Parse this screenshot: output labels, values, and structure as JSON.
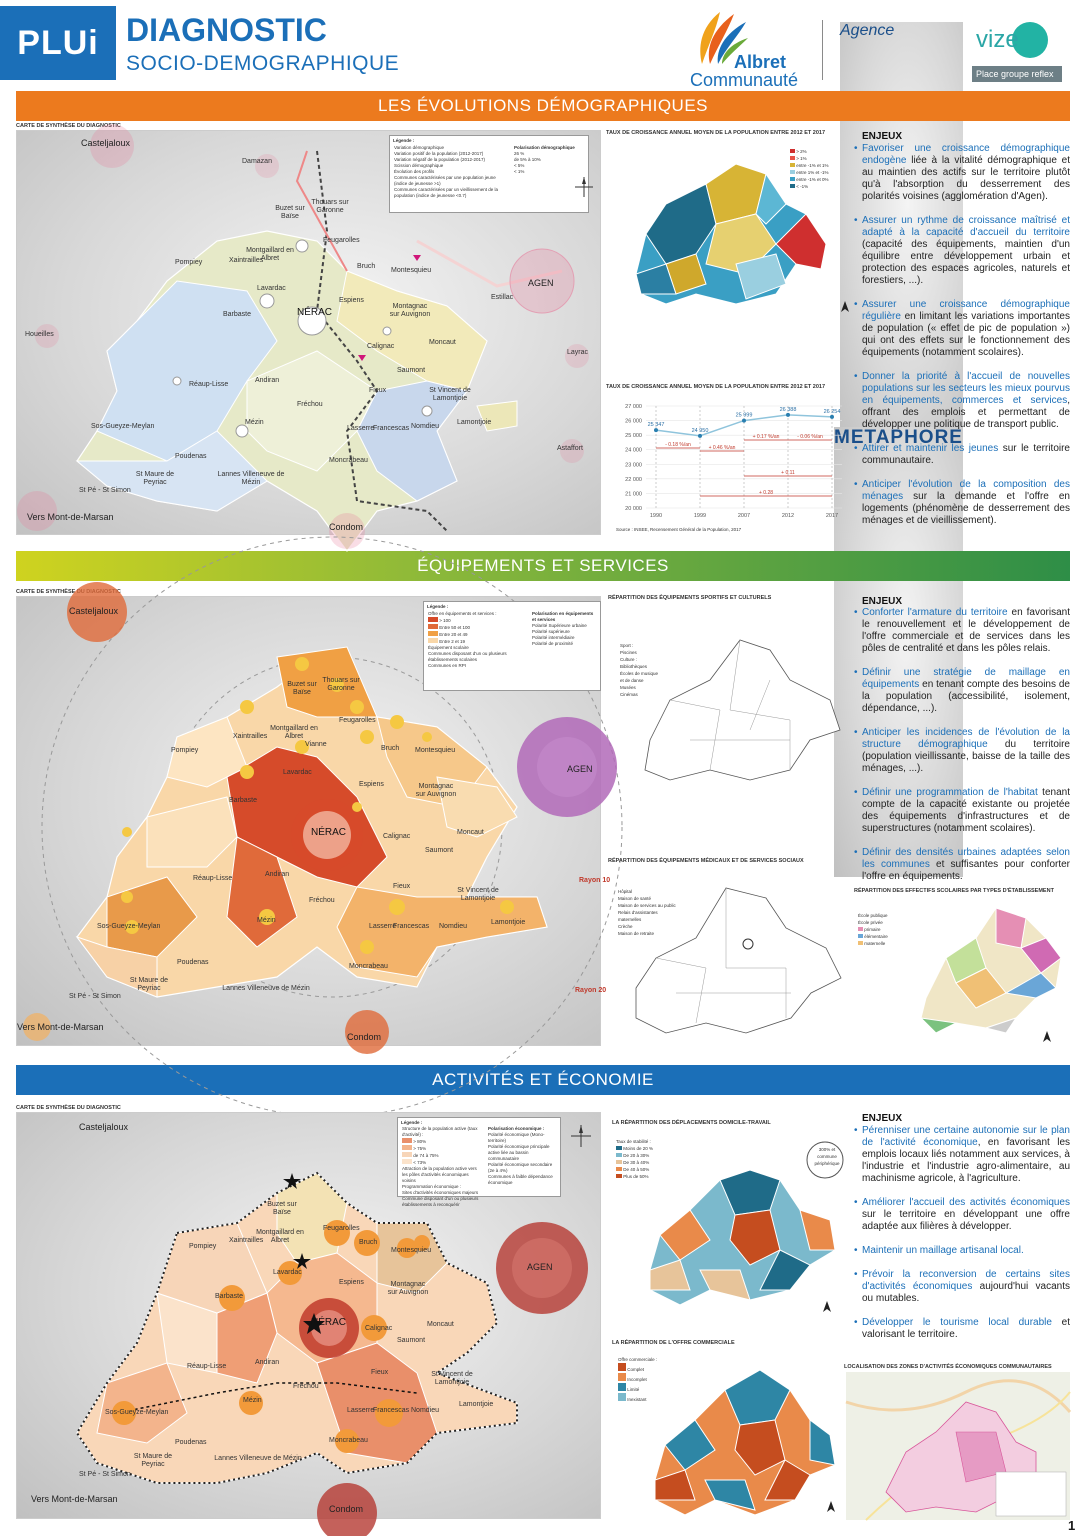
{
  "header": {
    "badge": "PLUi",
    "title": "DIAGNOSTIC",
    "subtitle": "SOCIO-DEMOGRAPHIQUE",
    "logo_albret_1": "Albret",
    "logo_albret_2": "Communauté",
    "logo_agence": "Agence",
    "logo_metaphore": "METAPHORE",
    "logo_vizea": "vize",
    "logo_place": "Place groupe reflex"
  },
  "sections": [
    {
      "title": "LES ÉVOLUTIONS DÉMOGRAPHIQUES"
    },
    {
      "title": "ÉQUIPEMENTS ET SERVICES"
    },
    {
      "title": "ACTIVITÉS ET ÉCONOMIE"
    }
  ],
  "map_caption": "CARTE DE SYNTHÈSE DU DIAGNOSTIC",
  "map1": {
    "labels": {
      "casteljaloux": "Casteljaloux",
      "damazan": "Damazan",
      "houeilles": "Houeilles",
      "agen": "AGEN",
      "nerac": "NÉRAC",
      "estillac": "Estillac",
      "layrac": "Layrac",
      "astaffort": "Astaffort",
      "condom": "Condom",
      "mdm": "Vers Mont-de-Marsan",
      "pompiey": "Pompiey",
      "xaintrailles": "Xaintrailles",
      "montgaillard": "Montgaillard en Albret",
      "buzet": "Buzet sur Baïse",
      "thouars": "Thouars sur Garonne",
      "feugarolles": "Feugarolles",
      "bruch": "Bruch",
      "montesquieu": "Montesquieu",
      "lavardac": "Lavardac",
      "barbaste": "Barbaste",
      "espiens": "Espiens",
      "montagnac": "Montagnac sur Auvignon",
      "calignac": "Calignac",
      "saumont": "Saumont",
      "moncaut": "Moncaut",
      "reaup": "Réaup-Lisse",
      "andiran": "Andiran",
      "frechou": "Fréchou",
      "mezin": "Mézin",
      "fieux": "Fieux",
      "stvincent": "St Vincent de Lamontjoie",
      "lasserre": "Lasserre",
      "francescas": "Francescas",
      "nomdieu": "Nomdieu",
      "lamontjoie": "Lamontjoie",
      "sosgueyze": "Sos-Gueyze-Meylan",
      "poudenas": "Poudenas",
      "stmaure": "St Maure de Peyriac",
      "lannes": "Lannes Villeneuve de Mézin",
      "moncrabeau": "Moncrabeau",
      "stpe": "St Pé - St Simon"
    },
    "legend": {
      "title": "Légende :",
      "items": [
        "Variation démographique",
        "Variation positif de la population (2012-2017)",
        "Variation négatif de la population (2012-2017)",
        "Scission démographique",
        "Évolution des profils",
        "Communes caractérisées par une population jeune (indice de jeunesse >1)",
        "Communes caractérisées par un vieillissement de la population (indice de jeunesse <0.7)"
      ],
      "polar_title": "Polarisation démographique",
      "polar_items": [
        "26 %",
        "de 5% à 10%",
        "< 5%",
        "< 1%"
      ]
    }
  },
  "map2": {
    "labels": {
      "rayon10": "Rayon 10",
      "rayon20": "Rayon 20"
    },
    "legend": {
      "title": "Légende :",
      "items": [
        "Offre en équipements et services :",
        "> 100",
        "Entre 50 et 100",
        "Entre 20 et 49",
        "Entre 2 et 19",
        "Équipement scolaire",
        "Communes disposant d'un ou plusieurs établissements scolaires",
        "Communes en RPI"
      ],
      "polar_title": "Polarisation en équipements et services",
      "polar_items": [
        "Polarité Supérieure urbaine",
        "Polarité supérieure",
        "Polarité intermédiaire",
        "Polarité de proximité"
      ]
    }
  },
  "map3": {
    "legend": {
      "title": "Légende :",
      "items": [
        "Structure de la population active (taux d'activité) :",
        "> 80%",
        "> 75%",
        "de 74 à 75%",
        "< 73%",
        "Attraction de la population active vers les pôles d'activités économiques voisins",
        "Programmation économique :",
        "Sites d'activités économiques majeurs",
        "Commune disposant d'un ou plusieurs établissements à reconquérir"
      ],
      "polar_title": "Polarisation économique :",
      "polar_items": [
        "Polarité économique (Mono-territoire)",
        "Polarité économique principale active liée au bassin communautaire",
        "Polarité économique secondaire (2e à 4%)",
        "Communes à faible dépendance économique"
      ]
    }
  },
  "right1": {
    "map_caption": "TAUX DE CROISSANCE ANNUEL MOYEN DE LA POPULATION ENTRE 2012 ET 2017",
    "map_legend": [
      "> 2%",
      "> 1%",
      "entre -1% et 1%",
      "entre 1% et -1%",
      "entre -1% et 0%",
      "< -1%"
    ],
    "chart_caption": "TAUX DE CROISSANCE ANNUEL MOYEN DE LA POPULATION ENTRE 2012 ET 2017",
    "chart_source": "Source : INSEE, Recensement Général de la Population, 2017"
  },
  "chart_data": {
    "type": "line",
    "x": [
      "1990",
      "1999",
      "2007",
      "2012",
      "2017"
    ],
    "series": [
      {
        "values": [
          25347,
          24950,
          25999,
          26388,
          26254
        ]
      }
    ],
    "ylim": [
      20000,
      27000
    ],
    "yticks": [
      "27 000",
      "26 000",
      "25 000",
      "24 000",
      "23 000",
      "22 000",
      "21 000",
      "20 000"
    ],
    "data_labels": [
      "25 347",
      "24 950",
      "25 999",
      "26 388",
      "26 254"
    ],
    "rate_labels": [
      "- 0.18 %/an",
      "+ 0.46 %/an",
      "+ 0.17 %/an",
      "- 0.06 %/an",
      "+ 0.11",
      "+ 0.28"
    ]
  },
  "enjeux1": {
    "heading": "ENJEUX",
    "items": [
      {
        "hl": "Favoriser une croissance démographique endogène",
        "rest": " liée à la vitalité démographique et au maintien des actifs sur le territoire plutôt qu'à l'absorption du desserrement des polarités voisines (agglomération d'Agen)."
      },
      {
        "hl": "Assurer un rythme de croissance maîtrisé et adapté à la capacité d'accueil du territoire",
        "rest": " (capacité des équipements, maintien d'un équilibre entre développement urbain et protection des espaces agricoles, naturels et forestiers, ...)."
      },
      {
        "hl": "Assurer une croissance démographique régulière",
        "rest": " en limitant les variations importantes de population (« effet de pic de population ») qui ont des effets sur le fonctionnement des équipements (notamment scolaires)."
      },
      {
        "hl": "Donner la priorité à l'accueil de nouvelles populations sur les secteurs les mieux pourvus en équipements, commerces et services",
        "rest": ", offrant des emplois et permettant de développer une politique de transport public."
      },
      {
        "hl": "Attirer et maintenir les jeunes",
        "rest": " sur le territoire communautaire."
      },
      {
        "hl": "Anticiper l'évolution de la composition des ménages",
        "rest": " sur la demande et l'offre en logements (phénomène de desserrement des ménages et de vieillissement)."
      }
    ]
  },
  "right2": {
    "caption_sport": "RÉPARTITION DES ÉQUIPEMENTS SPORTIFS ET CULTURELS",
    "sport_legend": [
      "Sport :",
      "Piscines",
      "Culture :",
      "Bibliothèques",
      "Écoles de musique et de danse",
      "Musées",
      "Cinémas"
    ],
    "caption_med": "RÉPARTITION DES ÉQUIPEMENTS MÉDICAUX ET DE SERVICES SOCIAUX",
    "med_legend": [
      "Hôpital",
      "Maison de santé",
      "Maison de services au public",
      "Relais d'assistantes maternelles",
      "Crèche",
      "Maison de retraite"
    ],
    "caption_school": "RÉPARTITION DES EFFECTIFS SCOLAIRES PAR TYPES D'ÉTABLISSEMENT",
    "school_legend": [
      "École publique",
      "École privée",
      "primaire",
      "élémentaire",
      "maternelle"
    ]
  },
  "enjeux2": {
    "heading": "ENJEUX",
    "items": [
      {
        "hl": "Conforter l'armature du territoire",
        "rest": " en favorisant le renouvellement et le développement de l'offre commerciale et de services dans les pôles de centralité et dans les pôles relais."
      },
      {
        "hl": "Définir une stratégie de maillage en équipements",
        "rest": " en tenant compte des besoins de la population (accessibilité, isolement, dépendance, ...)."
      },
      {
        "hl": "Anticiper les incidences de l'évolution de la structure démographique",
        "rest": " du territoire (population vieillissante, baisse de la taille des ménages, ...)."
      },
      {
        "hl": "Définir une programmation de l'habitat",
        "rest": " tenant compte de la capacité existante ou projetée des équipements d'infrastructures et de superstructures (notamment scolaires)."
      },
      {
        "hl": "Définir des densités urbaines adaptées selon les communes",
        "rest": " et suffisantes pour conforter l'offre en équipements."
      }
    ]
  },
  "right3": {
    "caption_dt": "LA RÉPARTITION DES DÉPLACEMENTS DOMICILE-TRAVAIL",
    "dt_legend_title": "Taux de stabilité :",
    "dt_legend": [
      "Moins de 20 %",
      "De 20 à 30%",
      "De 30 à 40%",
      "De 40 à 50%",
      "Plus de 50%"
    ],
    "dt_note": "300% et commune périphérique",
    "caption_com": "LA RÉPARTITION DE L'OFFRE COMMERCIALE",
    "com_legend_title": "Offre commerciale :",
    "com_legend": [
      "Complet",
      "Incomplet",
      "Limité",
      "Inexistant"
    ],
    "caption_za": "LOCALISATION DES ZONES D'ACTIVITÉS ÉCONOMIQUES COMMUNAUTAIRES"
  },
  "enjeux3": {
    "heading": "ENJEUX",
    "items": [
      {
        "hl": "Pérenniser une certaine autonomie sur le plan de l'activité économique",
        "rest": ", en favorisant les emplois locaux liés notamment aux services, à l'industrie et l'industrie agro-alimentaire, au machinisme agricole, à l'agriculture."
      },
      {
        "hl": "Améliorer l'accueil des activités économiques",
        "rest": " sur le territoire en développant une offre adaptée aux filières à développer."
      },
      {
        "hl": "Maintenir un maillage artisanal local.",
        "rest": ""
      },
      {
        "hl": "Prévoir la reconversion de certains sites d'activités économiques",
        "rest": " aujourd'hui vacants ou mutables."
      },
      {
        "hl": "Développer le tourisme local durable",
        "rest": " et valorisant le territoire."
      }
    ]
  },
  "page_number": "1",
  "colors": {
    "blue": "#1b6fb8",
    "orange": "#ec7a1e",
    "green": "#2e8e47"
  }
}
